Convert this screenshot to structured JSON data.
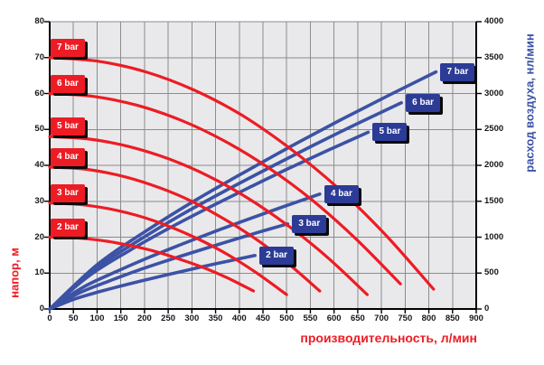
{
  "colors": {
    "red": "#ed1c24",
    "blue_curve": "#3c52a5",
    "blue_box": "#2c3b96",
    "plot_bg": "#e9e9eb",
    "grid": "#8c8c8c",
    "axis": "#000000",
    "tick_text": "#17171c"
  },
  "chart_data": {
    "type": "line",
    "title": "",
    "grid": true,
    "x_axis": {
      "label": "производительность, л/мин",
      "min": 0,
      "max": 900,
      "ticks": [
        0,
        50,
        100,
        150,
        200,
        250,
        300,
        350,
        400,
        450,
        500,
        550,
        600,
        650,
        700,
        750,
        800,
        850,
        900
      ]
    },
    "y_left": {
      "label": "напор, м",
      "min": 0,
      "max": 80,
      "ticks": [
        0,
        10,
        20,
        30,
        40,
        50,
        60,
        70,
        80
      ]
    },
    "y_right": {
      "label": "расход воздуха, нл/мин",
      "min": 0,
      "max": 4000,
      "ticks": [
        0,
        500,
        1000,
        1500,
        2000,
        2500,
        3000,
        3500,
        4000
      ]
    },
    "series": [
      {
        "name": "head-7bar",
        "label": "7 bar",
        "group": "head",
        "axis": "left",
        "label_side": "start",
        "points": [
          [
            0,
            70
          ],
          [
            101,
            69
          ],
          [
            203,
            66
          ],
          [
            304,
            61
          ],
          [
            405,
            54
          ],
          [
            506,
            44.8
          ],
          [
            608,
            33.7
          ],
          [
            709,
            20.6
          ],
          [
            810,
            5.5
          ]
        ]
      },
      {
        "name": "head-6bar",
        "label": "6 bar",
        "group": "head",
        "axis": "left",
        "label_side": "start",
        "points": [
          [
            0,
            60
          ],
          [
            92,
            59.2
          ],
          [
            185,
            56.7
          ],
          [
            278,
            52.5
          ],
          [
            370,
            46.7
          ],
          [
            462,
            39.3
          ],
          [
            555,
            30.2
          ],
          [
            648,
            19.3
          ],
          [
            740,
            7
          ]
        ]
      },
      {
        "name": "head-5bar",
        "label": "5 bar",
        "group": "head",
        "axis": "left",
        "label_side": "start",
        "points": [
          [
            0,
            48
          ],
          [
            84,
            47.3
          ],
          [
            168,
            45.2
          ],
          [
            251,
            41.8
          ],
          [
            335,
            37
          ],
          [
            419,
            30.8
          ],
          [
            503,
            23.2
          ],
          [
            586,
            14.4
          ],
          [
            670,
            4
          ]
        ]
      },
      {
        "name": "head-4bar",
        "label": "4 bar",
        "group": "head",
        "axis": "left",
        "label_side": "start",
        "points": [
          [
            0,
            39.5
          ],
          [
            71,
            39
          ],
          [
            143,
            37.3
          ],
          [
            214,
            34.6
          ],
          [
            285,
            30.9
          ],
          [
            356,
            26
          ],
          [
            428,
            20.1
          ],
          [
            499,
            13.1
          ],
          [
            570,
            5
          ]
        ]
      },
      {
        "name": "head-3bar",
        "label": "3 bar",
        "group": "head",
        "axis": "left",
        "label_side": "start",
        "points": [
          [
            0,
            29.5
          ],
          [
            63,
            29.1
          ],
          [
            125,
            27.9
          ],
          [
            188,
            25.9
          ],
          [
            250,
            23.1
          ],
          [
            313,
            19.5
          ],
          [
            375,
            15.2
          ],
          [
            438,
            9.9
          ],
          [
            500,
            4
          ]
        ]
      },
      {
        "name": "head-2bar",
        "label": "2 bar",
        "group": "head",
        "axis": "left",
        "label_side": "start",
        "points": [
          [
            0,
            20
          ],
          [
            54,
            19.8
          ],
          [
            108,
            19.1
          ],
          [
            161,
            17.9
          ],
          [
            215,
            16.3
          ],
          [
            269,
            14.1
          ],
          [
            323,
            11.6
          ],
          [
            376,
            8.6
          ],
          [
            430,
            5
          ]
        ]
      },
      {
        "name": "air-7bar",
        "label": "7 bar",
        "group": "air",
        "axis": "right",
        "label_side": "end",
        "points": [
          [
            0,
            0
          ],
          [
            102,
            627
          ],
          [
            204,
            1089
          ],
          [
            306,
            1508
          ],
          [
            408,
            1894
          ],
          [
            509,
            2264
          ],
          [
            611,
            2623
          ],
          [
            713,
            2966
          ],
          [
            815,
            3300
          ]
        ]
      },
      {
        "name": "air-6bar",
        "label": "6 bar",
        "group": "air",
        "axis": "right",
        "label_side": "end",
        "points": [
          [
            0,
            0
          ],
          [
            93,
            545
          ],
          [
            186,
            947
          ],
          [
            278,
            1312
          ],
          [
            371,
            1648
          ],
          [
            464,
            1969
          ],
          [
            557,
            2282
          ],
          [
            649,
            2580
          ],
          [
            742,
            2870
          ]
        ]
      },
      {
        "name": "air-5bar",
        "label": "5 bar",
        "group": "air",
        "axis": "right",
        "label_side": "end",
        "points": [
          [
            0,
            0
          ],
          [
            84,
            467
          ],
          [
            168,
            812
          ],
          [
            252,
            1124
          ],
          [
            336,
            1412
          ],
          [
            420,
            1688
          ],
          [
            504,
            1956
          ],
          [
            588,
            2212
          ],
          [
            672,
            2460
          ]
        ]
      },
      {
        "name": "air-4bar",
        "label": "4 bar",
        "group": "air",
        "axis": "right",
        "label_side": "end",
        "points": [
          [
            0,
            0
          ],
          [
            71,
            304
          ],
          [
            143,
            528
          ],
          [
            214,
            731
          ],
          [
            285,
            918
          ],
          [
            356,
            1098
          ],
          [
            428,
            1272
          ],
          [
            499,
            1438
          ],
          [
            570,
            1600
          ]
        ]
      },
      {
        "name": "air-3bar",
        "label": "3 bar",
        "group": "air",
        "axis": "right",
        "label_side": "end",
        "points": [
          [
            0,
            0
          ],
          [
            63,
            225
          ],
          [
            126,
            391
          ],
          [
            188,
            542
          ],
          [
            251,
            680
          ],
          [
            314,
            813
          ],
          [
            377,
            941
          ],
          [
            439,
            1065
          ],
          [
            502,
            1185
          ]
        ]
      },
      {
        "name": "air-2bar",
        "label": "2 bar",
        "group": "air",
        "axis": "right",
        "label_side": "end",
        "points": [
          [
            0,
            0
          ],
          [
            54,
            142
          ],
          [
            108,
            246
          ],
          [
            162,
            340
          ],
          [
            217,
            428
          ],
          [
            271,
            511
          ],
          [
            325,
            592
          ],
          [
            379,
            670
          ],
          [
            433,
            745
          ]
        ]
      }
    ]
  }
}
